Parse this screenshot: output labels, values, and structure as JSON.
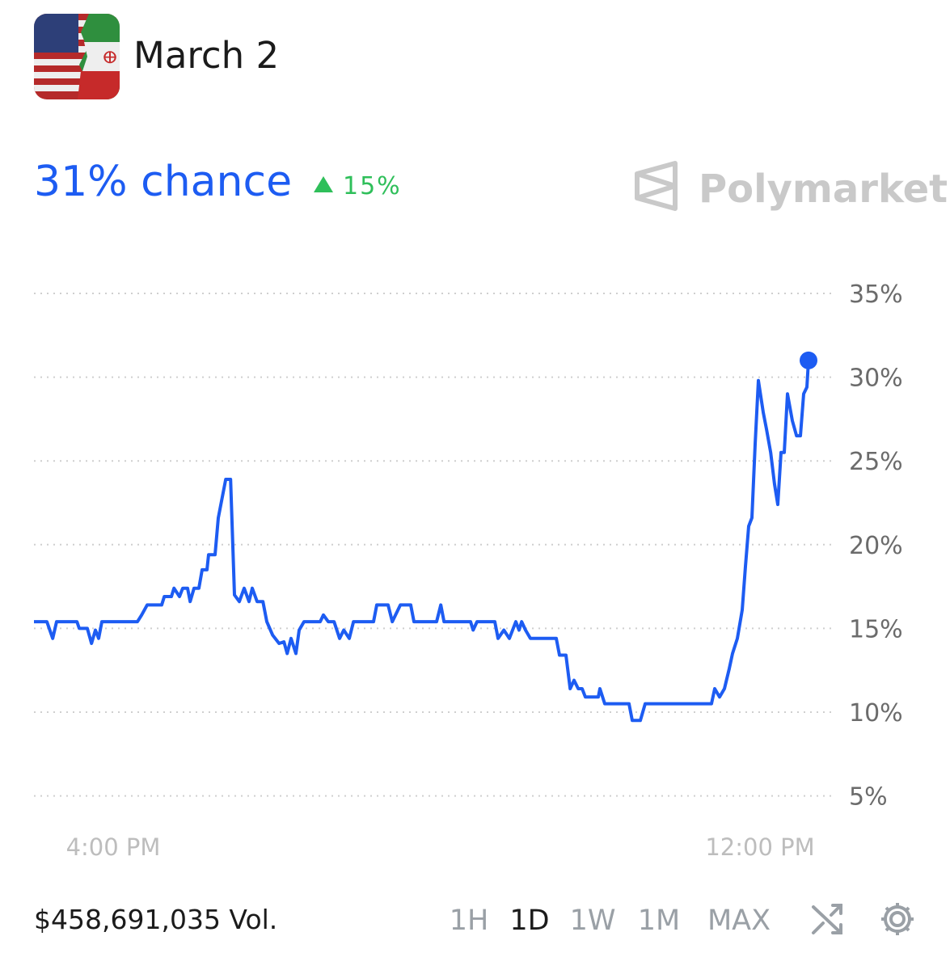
{
  "header": {
    "title": "March 2"
  },
  "summary": {
    "chance": "31% chance",
    "change": "15%"
  },
  "brand": "Polymarket",
  "footer": {
    "volume": "$458,691,035 Vol.",
    "ranges": [
      "1H",
      "1D",
      "1W",
      "1M",
      "MAX"
    ],
    "active_range": 1
  },
  "chart_data": {
    "type": "line",
    "color": "#1d5cf2",
    "x": [
      13.55,
      13.95,
      14.13,
      14.25,
      14.88,
      14.95,
      15.2,
      15.33,
      15.45,
      15.55,
      15.65,
      16.75,
      16.88,
      17.05,
      17.5,
      17.58,
      17.8,
      17.88,
      18.05,
      18.15,
      18.3,
      18.38,
      18.5,
      18.65,
      18.75,
      18.9,
      18.95,
      19.15,
      19.25,
      19.35,
      19.48,
      19.63,
      19.75,
      19.9,
      20.05,
      20.2,
      20.3,
      20.45,
      20.63,
      20.75,
      20.93,
      21.13,
      21.28,
      21.38,
      21.5,
      21.65,
      21.75,
      21.9,
      22.4,
      22.5,
      22.65,
      22.83,
      23,
      23.13,
      23.3,
      23.43,
      24.05,
      24.15,
      24.5,
      24.63,
      24.88,
      25.2,
      25.3,
      26,
      26.13,
      26.23,
      27.05,
      27.13,
      27.25,
      27.8,
      27.9,
      28.08,
      28.25,
      28.45,
      28.55,
      28.63,
      28.75,
      28.9,
      29.7,
      29.8,
      30,
      30.13,
      30.25,
      30.38,
      30.5,
      30.6,
      31,
      31.05,
      31.2,
      31.95,
      32.05,
      32.3,
      32.45,
      34.5,
      34.6,
      34.75,
      34.9,
      35.05,
      35.15,
      35.3,
      35.45,
      35.55,
      35.65,
      35.75,
      35.85,
      35.95,
      36.1,
      36.2,
      36.33,
      36.45,
      36.55,
      36.65,
      36.75,
      36.85,
      37,
      37.13,
      37.25,
      37.35,
      37.45,
      37.5
    ],
    "values": [
      15.4,
      15.4,
      14.4,
      15.4,
      15.4,
      15.0,
      15.0,
      14.1,
      14.9,
      14.4,
      15.4,
      15.4,
      15.8,
      16.4,
      16.4,
      16.9,
      16.9,
      17.4,
      16.9,
      17.4,
      17.4,
      16.6,
      17.4,
      17.4,
      18.5,
      18.5,
      19.4,
      19.4,
      21.6,
      22.6,
      23.9,
      23.9,
      17.0,
      16.6,
      17.4,
      16.6,
      17.4,
      16.6,
      16.6,
      15.4,
      14.6,
      14.1,
      14.2,
      13.5,
      14.4,
      13.5,
      14.9,
      15.4,
      15.4,
      15.8,
      15.4,
      15.4,
      14.4,
      14.9,
      14.4,
      15.4,
      15.4,
      16.4,
      16.4,
      15.4,
      16.4,
      16.4,
      15.4,
      15.4,
      16.4,
      15.4,
      15.4,
      14.9,
      15.4,
      15.4,
      14.4,
      14.9,
      14.4,
      15.4,
      14.9,
      15.4,
      14.9,
      14.4,
      14.4,
      13.4,
      13.4,
      11.4,
      11.9,
      11.4,
      11.4,
      10.9,
      10.9,
      11.4,
      10.5,
      10.5,
      9.5,
      9.5,
      10.5,
      10.5,
      11.4,
      10.9,
      11.4,
      12.6,
      13.5,
      14.4,
      16.1,
      18.7,
      21.1,
      21.6,
      26.0,
      29.8,
      27.9,
      26.9,
      25.5,
      23.6,
      22.4,
      25.5,
      25.5,
      29.0,
      27.4,
      26.5,
      26.5,
      29.0,
      29.4,
      31
    ],
    "xlim": [
      13.55,
      37.5
    ],
    "xticks": [
      {
        "value": 16,
        "label": "4:00 PM"
      },
      {
        "value": 36,
        "label": "12:00 PM"
      }
    ],
    "ylim": [
      4,
      36
    ],
    "yticks": [
      {
        "value": 5,
        "label": "5%"
      },
      {
        "value": 10,
        "label": "10%"
      },
      {
        "value": 15,
        "label": "15%"
      },
      {
        "value": 20,
        "label": "20%"
      },
      {
        "value": 25,
        "label": "25%"
      },
      {
        "value": 30,
        "label": "30%"
      },
      {
        "value": 35,
        "label": "35%"
      }
    ],
    "grid": true
  }
}
